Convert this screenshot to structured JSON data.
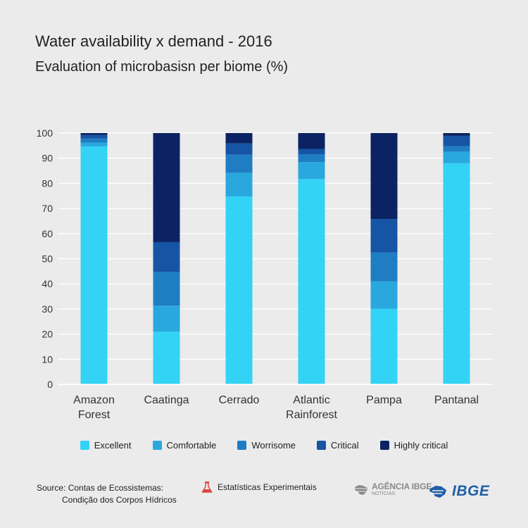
{
  "header": {
    "title": "Water availability x demand  - 2016",
    "subtitle": "Evaluation of microbasisn per biome (%)"
  },
  "chart_data": {
    "type": "bar",
    "stacked": true,
    "categories": [
      [
        "Amazon",
        "Forest"
      ],
      [
        "Caatinga"
      ],
      [
        "Cerrado"
      ],
      [
        "Atlantic",
        "Rainforest"
      ],
      [
        "Pampa"
      ],
      [
        "Pantanal"
      ]
    ],
    "series": [
      {
        "name": "Excellent",
        "color": "#33d3f5",
        "values": [
          94.7,
          21.0,
          74.8,
          81.7,
          30.1,
          88.0
        ]
      },
      {
        "name": "Comfortable",
        "color": "#29a8de",
        "values": [
          1.5,
          10.3,
          9.4,
          6.8,
          10.9,
          4.6
        ]
      },
      {
        "name": "Worrisome",
        "color": "#1f7dc3",
        "values": [
          1.6,
          13.5,
          7.2,
          3.1,
          11.5,
          2.2
        ]
      },
      {
        "name": "Critical",
        "color": "#1654a5",
        "values": [
          1.4,
          11.8,
          4.5,
          2.1,
          13.3,
          4.1
        ]
      },
      {
        "name": "Highly critical",
        "color": "#0c2363",
        "values": [
          0.8,
          43.4,
          4.1,
          6.3,
          34.2,
          1.1
        ]
      }
    ],
    "yticks": [
      "0",
      "10",
      "20",
      "30",
      "40",
      "50",
      "60",
      "70",
      "80",
      "90",
      "100"
    ],
    "ylim": [
      0,
      100
    ],
    "grid": true,
    "legend_position": "bottom"
  },
  "footer": {
    "source_line1": "Source: Contas de Ecossistemas:",
    "source_line2": "Condição dos Corpos Hídricos",
    "stats_label": "Estatísticas Experimentais",
    "agencia_main": "AGÊNCIA IBGE",
    "agencia_sub": "NOTÍCIAS",
    "ibge_logo": "IBGE"
  }
}
